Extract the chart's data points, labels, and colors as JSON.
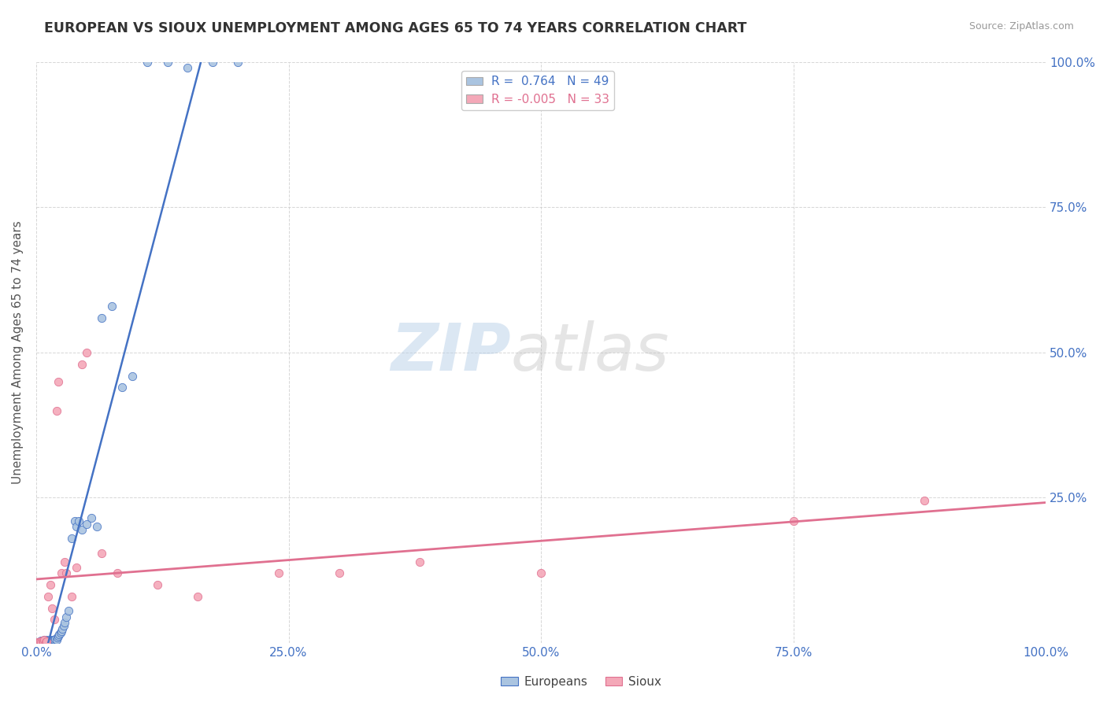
{
  "title": "EUROPEAN VS SIOUX UNEMPLOYMENT AMONG AGES 65 TO 74 YEARS CORRELATION CHART",
  "source": "Source: ZipAtlas.com",
  "ylabel": "Unemployment Among Ages 65 to 74 years",
  "xlim": [
    0.0,
    1.0
  ],
  "ylim": [
    0.0,
    1.0
  ],
  "xtick_labels": [
    "0.0%",
    "25.0%",
    "50.0%",
    "75.0%",
    "100.0%"
  ],
  "xtick_vals": [
    0.0,
    0.25,
    0.5,
    0.75,
    1.0
  ],
  "ytick_vals": [
    0.0,
    0.25,
    0.5,
    0.75,
    1.0
  ],
  "right_ytick_labels": [
    "",
    "25.0%",
    "50.0%",
    "75.0%",
    "100.0%"
  ],
  "european_color": "#aac4e0",
  "sioux_color": "#f4a8b8",
  "european_R": 0.764,
  "european_N": 49,
  "sioux_R": -0.005,
  "sioux_N": 33,
  "background_color": "#ffffff",
  "grid_color": "#cccccc",
  "blue_line_color": "#4472c4",
  "pink_line_color": "#e07090",
  "europeans_x": [
    0.002,
    0.003,
    0.004,
    0.005,
    0.005,
    0.006,
    0.007,
    0.008,
    0.008,
    0.009,
    0.01,
    0.01,
    0.011,
    0.012,
    0.013,
    0.014,
    0.015,
    0.016,
    0.017,
    0.018,
    0.019,
    0.02,
    0.021,
    0.022,
    0.023,
    0.024,
    0.025,
    0.026,
    0.027,
    0.028,
    0.03,
    0.032,
    0.035,
    0.038,
    0.04,
    0.042,
    0.045,
    0.05,
    0.055,
    0.06,
    0.065,
    0.075,
    0.085,
    0.095,
    0.11,
    0.13,
    0.15,
    0.175,
    0.2
  ],
  "europeans_y": [
    0.001,
    0.002,
    0.003,
    0.001,
    0.004,
    0.002,
    0.003,
    0.001,
    0.005,
    0.002,
    0.003,
    0.006,
    0.002,
    0.004,
    0.003,
    0.005,
    0.004,
    0.003,
    0.006,
    0.005,
    0.007,
    0.005,
    0.01,
    0.012,
    0.015,
    0.018,
    0.02,
    0.025,
    0.03,
    0.035,
    0.045,
    0.055,
    0.18,
    0.21,
    0.2,
    0.21,
    0.195,
    0.205,
    0.215,
    0.2,
    0.56,
    0.58,
    0.44,
    0.46,
    1.0,
    1.0,
    0.99,
    1.0,
    1.0
  ],
  "sioux_x": [
    0.001,
    0.002,
    0.003,
    0.004,
    0.005,
    0.006,
    0.007,
    0.008,
    0.009,
    0.01,
    0.012,
    0.014,
    0.016,
    0.018,
    0.02,
    0.022,
    0.025,
    0.028,
    0.03,
    0.035,
    0.04,
    0.045,
    0.05,
    0.065,
    0.08,
    0.12,
    0.16,
    0.24,
    0.3,
    0.38,
    0.5,
    0.75,
    0.88
  ],
  "sioux_y": [
    0.001,
    0.002,
    0.001,
    0.003,
    0.002,
    0.004,
    0.003,
    0.005,
    0.002,
    0.003,
    0.08,
    0.1,
    0.06,
    0.04,
    0.4,
    0.45,
    0.12,
    0.14,
    0.12,
    0.08,
    0.13,
    0.48,
    0.5,
    0.155,
    0.12,
    0.1,
    0.08,
    0.12,
    0.12,
    0.14,
    0.12,
    0.21,
    0.245
  ]
}
